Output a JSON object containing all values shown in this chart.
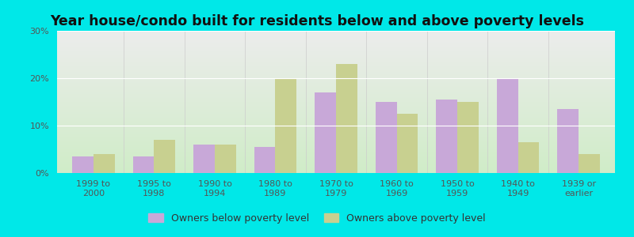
{
  "title": "Year house/condo built for residents below and above poverty levels",
  "categories": [
    "1999 to\n2000",
    "1995 to\n1998",
    "1990 to\n1994",
    "1980 to\n1989",
    "1970 to\n1979",
    "1960 to\n1969",
    "1950 to\n1959",
    "1940 to\n1949",
    "1939 or\nearlier"
  ],
  "below_poverty": [
    3.5,
    3.5,
    6.0,
    5.5,
    17.0,
    15.0,
    15.5,
    20.0,
    13.5
  ],
  "above_poverty": [
    4.0,
    7.0,
    6.0,
    20.0,
    23.0,
    12.5,
    15.0,
    6.5,
    4.0
  ],
  "below_color": "#c8a8d8",
  "above_color": "#c8d090",
  "outer_bg": "#00e8e8",
  "ylim": [
    0,
    30
  ],
  "yticks": [
    0,
    10,
    20,
    30
  ],
  "ytick_labels": [
    "0%",
    "10%",
    "20%",
    "30%"
  ],
  "bar_width": 0.35,
  "legend_below_label": "Owners below poverty level",
  "legend_above_label": "Owners above poverty level",
  "title_fontsize": 12.5,
  "tick_fontsize": 8,
  "legend_fontsize": 9
}
